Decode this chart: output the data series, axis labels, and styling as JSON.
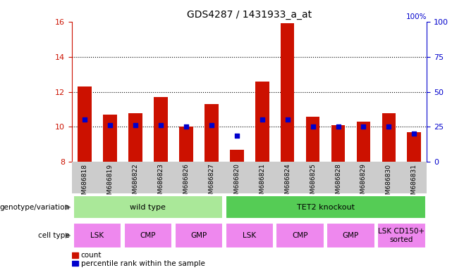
{
  "title": "GDS4287 / 1431933_a_at",
  "samples": [
    "GSM686818",
    "GSM686819",
    "GSM686822",
    "GSM686823",
    "GSM686826",
    "GSM686827",
    "GSM686820",
    "GSM686821",
    "GSM686824",
    "GSM686825",
    "GSM686828",
    "GSM686829",
    "GSM686830",
    "GSM686831"
  ],
  "bar_values": [
    12.3,
    10.7,
    10.8,
    11.7,
    10.0,
    11.3,
    8.7,
    12.6,
    15.9,
    10.6,
    10.1,
    10.3,
    10.8,
    9.7
  ],
  "bar_base": 8.0,
  "dot_values": [
    10.4,
    10.1,
    10.1,
    10.1,
    10.0,
    10.1,
    9.5,
    10.4,
    10.4,
    10.0,
    10.0,
    10.0,
    10.0,
    9.6
  ],
  "ylim": [
    8,
    16
  ],
  "yticks_left": [
    8,
    10,
    12,
    14,
    16
  ],
  "yticks_right": [
    0,
    25,
    50,
    75,
    100
  ],
  "bar_color": "#cc1100",
  "dot_color": "#0000cc",
  "genotype_groups": [
    {
      "label": "wild type",
      "start": 0,
      "end": 5,
      "color": "#aae899"
    },
    {
      "label": "TET2 knockout",
      "start": 6,
      "end": 13,
      "color": "#55cc55"
    }
  ],
  "cell_type_groups": [
    {
      "label": "LSK",
      "start": 0,
      "end": 1
    },
    {
      "label": "CMP",
      "start": 2,
      "end": 3
    },
    {
      "label": "GMP",
      "start": 4,
      "end": 5
    },
    {
      "label": "LSK",
      "start": 6,
      "end": 7
    },
    {
      "label": "CMP",
      "start": 8,
      "end": 9
    },
    {
      "label": "GMP",
      "start": 10,
      "end": 11
    },
    {
      "label": "LSK CD150+\nsorted",
      "start": 12,
      "end": 13
    }
  ],
  "cell_type_color": "#ee88ee",
  "legend_count_color": "#cc1100",
  "legend_dot_color": "#0000cc",
  "label_genotype": "genotype/variation",
  "label_celltype": "cell type",
  "left_axis_color": "#cc1100",
  "right_axis_color": "#0000cc",
  "sample_bg_color": "#cccccc",
  "grid_dotted_ticks": [
    10,
    12,
    14
  ]
}
